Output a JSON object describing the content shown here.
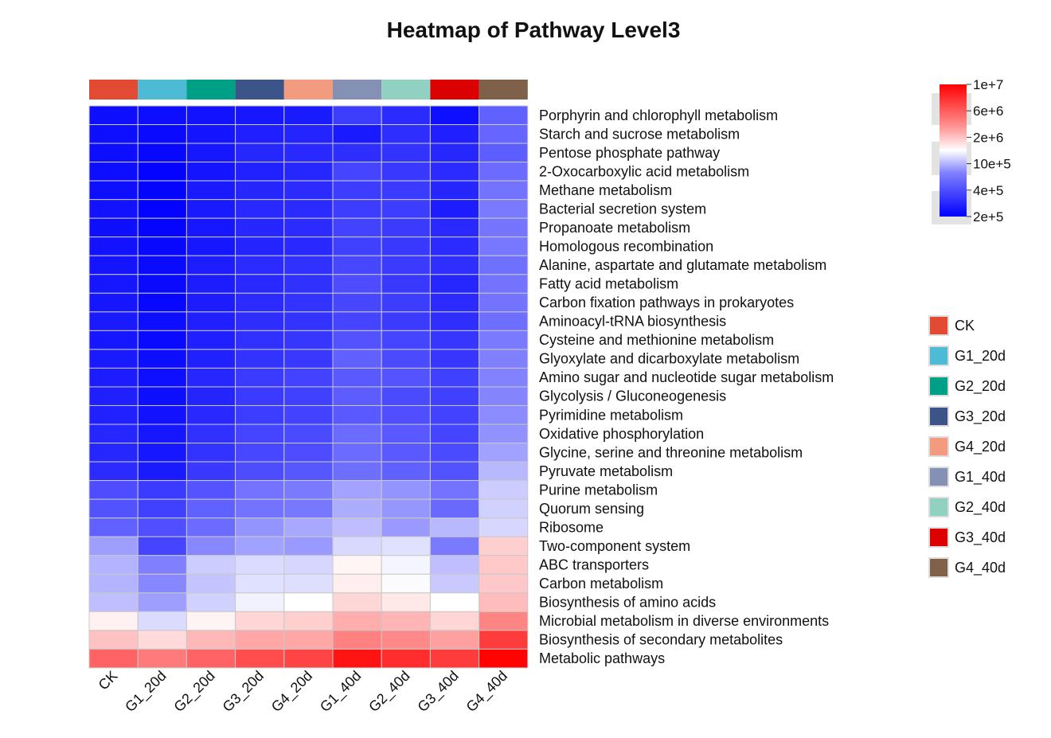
{
  "chart_data": {
    "type": "heatmap",
    "title": "Heatmap of Pathway Level3",
    "columns": [
      "CK",
      "G1_20d",
      "G2_20d",
      "G3_20d",
      "G4_20d",
      "G1_40d",
      "G2_40d",
      "G3_40d",
      "G4_40d"
    ],
    "column_colors": [
      "#e34a33",
      "#4dbbd5",
      "#00a087",
      "#3c5488",
      "#f39b7f",
      "#8491b4",
      "#91d1c2",
      "#dc0000",
      "#7e6148"
    ],
    "rows": [
      "Porphyrin and chlorophyll metabolism",
      "Starch and sucrose metabolism",
      "Pentose phosphate pathway",
      "2-Oxocarboxylic acid metabolism",
      "Methane metabolism",
      "Bacterial secretion system",
      "Propanoate metabolism",
      "Homologous recombination",
      "Alanine, aspartate and glutamate metabolism",
      "Fatty acid metabolism",
      "Carbon fixation pathways in prokaryotes",
      "Aminoacyl-tRNA biosynthesis",
      "Cysteine and methionine metabolism",
      "Glyoxylate and dicarboxylate metabolism",
      "Amino sugar and nucleotide sugar metabolism",
      "Glycolysis / Gluconeogenesis",
      "Pyrimidine metabolism",
      "Oxidative phosphorylation",
      "Glycine, serine and threonine metabolism",
      "Pyruvate metabolism",
      "Purine metabolism",
      "Quorum sensing",
      "Ribosome",
      "Two-component system",
      "ABC transporters",
      "Carbon metabolism",
      "Biosynthesis of amino acids",
      "Microbial metabolism in diverse environments",
      "Biosynthesis of secondary metabolites",
      "Metabolic pathways"
    ],
    "color_scale": {
      "ticks": [
        "1e+7",
        "6e+6",
        "2e+6",
        "10e+5",
        "4e+5",
        "2e+5"
      ],
      "low_color": "#0000ff",
      "mid_color": "#ffffff",
      "high_color": "#ff0000"
    },
    "values": [
      [
        0.06,
        0.05,
        0.07,
        0.09,
        0.1,
        0.24,
        0.17,
        0.06,
        0.38
      ],
      [
        0.06,
        0.04,
        0.08,
        0.12,
        0.14,
        0.1,
        0.18,
        0.12,
        0.4
      ],
      [
        0.05,
        0.03,
        0.09,
        0.15,
        0.16,
        0.18,
        0.2,
        0.15,
        0.37
      ],
      [
        0.05,
        0.01,
        0.08,
        0.13,
        0.15,
        0.27,
        0.22,
        0.17,
        0.42
      ],
      [
        0.06,
        0.02,
        0.1,
        0.15,
        0.17,
        0.24,
        0.23,
        0.15,
        0.45
      ],
      [
        0.07,
        0.01,
        0.1,
        0.16,
        0.17,
        0.24,
        0.24,
        0.11,
        0.48
      ],
      [
        0.06,
        0.02,
        0.09,
        0.15,
        0.17,
        0.26,
        0.23,
        0.16,
        0.46
      ],
      [
        0.07,
        0.03,
        0.09,
        0.14,
        0.16,
        0.25,
        0.22,
        0.17,
        0.47
      ],
      [
        0.08,
        0.04,
        0.11,
        0.17,
        0.19,
        0.28,
        0.23,
        0.18,
        0.44
      ],
      [
        0.09,
        0.04,
        0.11,
        0.16,
        0.19,
        0.3,
        0.22,
        0.15,
        0.45
      ],
      [
        0.09,
        0.03,
        0.11,
        0.17,
        0.2,
        0.28,
        0.24,
        0.17,
        0.45
      ],
      [
        0.1,
        0.05,
        0.12,
        0.18,
        0.2,
        0.27,
        0.23,
        0.18,
        0.43
      ],
      [
        0.09,
        0.04,
        0.12,
        0.19,
        0.21,
        0.32,
        0.27,
        0.21,
        0.48
      ],
      [
        0.1,
        0.05,
        0.13,
        0.2,
        0.22,
        0.38,
        0.29,
        0.21,
        0.5
      ],
      [
        0.11,
        0.06,
        0.15,
        0.23,
        0.26,
        0.35,
        0.33,
        0.25,
        0.51
      ],
      [
        0.12,
        0.06,
        0.14,
        0.23,
        0.25,
        0.36,
        0.29,
        0.25,
        0.52
      ],
      [
        0.13,
        0.07,
        0.16,
        0.24,
        0.26,
        0.35,
        0.31,
        0.26,
        0.55
      ],
      [
        0.15,
        0.09,
        0.19,
        0.27,
        0.29,
        0.42,
        0.35,
        0.27,
        0.57
      ],
      [
        0.15,
        0.09,
        0.2,
        0.28,
        0.3,
        0.42,
        0.35,
        0.29,
        0.63
      ],
      [
        0.17,
        0.1,
        0.22,
        0.3,
        0.34,
        0.43,
        0.38,
        0.32,
        0.72
      ],
      [
        0.3,
        0.23,
        0.33,
        0.45,
        0.48,
        0.64,
        0.58,
        0.45,
        0.8
      ],
      [
        0.32,
        0.25,
        0.38,
        0.45,
        0.47,
        0.68,
        0.59,
        0.41,
        0.82
      ],
      [
        0.38,
        0.31,
        0.42,
        0.58,
        0.66,
        0.74,
        0.6,
        0.72,
        0.84
      ],
      [
        0.62,
        0.27,
        0.53,
        0.63,
        0.6,
        0.85,
        0.88,
        0.48,
        1.34
      ],
      [
        0.7,
        0.5,
        0.8,
        0.86,
        0.84,
        1.07,
        0.96,
        0.75,
        1.38
      ],
      [
        0.7,
        0.53,
        0.77,
        0.88,
        0.87,
        1.12,
        0.99,
        0.79,
        1.39
      ],
      [
        0.75,
        0.62,
        0.82,
        0.95,
        1.0,
        1.29,
        1.16,
        1.0,
        1.47
      ],
      [
        1.1,
        0.86,
        1.08,
        1.3,
        1.34,
        1.58,
        1.52,
        1.3,
        1.87
      ],
      [
        1.43,
        1.26,
        1.5,
        1.62,
        1.63,
        1.89,
        1.84,
        1.67,
        2.38
      ],
      [
        2.1,
        1.93,
        2.1,
        2.26,
        2.32,
        2.66,
        2.48,
        2.38,
        2.78
      ]
    ]
  }
}
